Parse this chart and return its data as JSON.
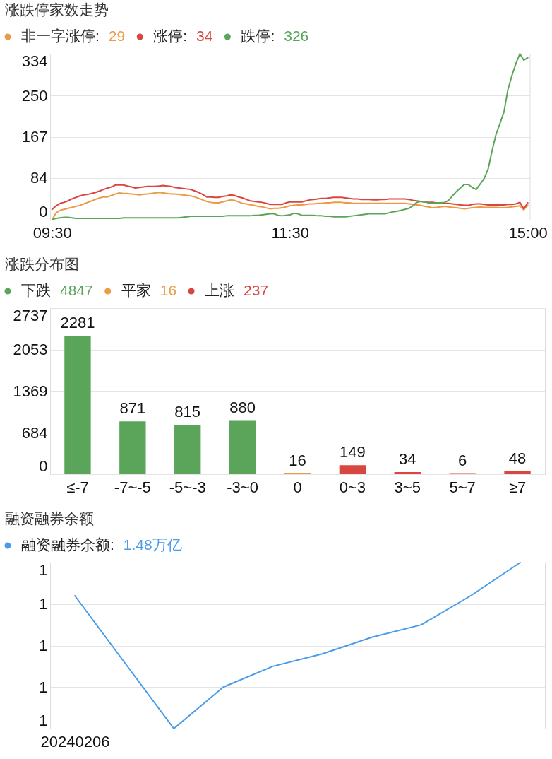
{
  "chart_data": [
    {
      "type": "line",
      "title": "涨跌停家数走势",
      "categories": [
        "09:30",
        null,
        null,
        null,
        null,
        null,
        null,
        null,
        null,
        null,
        null,
        null,
        null,
        null,
        null,
        null,
        null,
        null,
        null,
        null,
        null,
        null,
        null,
        null,
        null,
        null,
        null,
        null,
        null,
        null,
        null,
        null,
        null,
        null,
        null,
        null,
        null,
        null,
        null,
        null,
        null,
        null,
        null,
        null,
        null,
        null,
        null,
        null,
        null,
        null,
        null,
        null,
        null,
        null,
        null,
        null,
        null,
        null,
        null,
        null,
        "11:30",
        null,
        null,
        null,
        null,
        null,
        null,
        null,
        null,
        null,
        null,
        null,
        null,
        null,
        null,
        null,
        null,
        null,
        null,
        null,
        null,
        null,
        null,
        null,
        null,
        null,
        null,
        null,
        null,
        null,
        null,
        null,
        null,
        null,
        null,
        null,
        null,
        null,
        null,
        null,
        null,
        null,
        null,
        null,
        null,
        null,
        null,
        null,
        null,
        null,
        null,
        null,
        null,
        null,
        null,
        null,
        null,
        null,
        null,
        null,
        "15:00"
      ],
      "ylim": [
        0,
        334
      ],
      "yticks": [
        0,
        84,
        167,
        250,
        334
      ],
      "grid": "y",
      "legend": "top left",
      "annotations": [
        "29",
        "34",
        "326"
      ],
      "series": [
        {
          "name": "非一字涨停:",
          "color": "#eb9b43",
          "values": [
            0,
            14,
            19,
            21,
            23,
            25,
            27,
            29,
            32,
            35,
            38,
            41,
            44,
            46,
            46,
            49,
            52,
            54,
            53,
            53,
            52,
            51,
            50,
            51,
            52,
            53,
            54,
            55,
            54,
            53,
            52,
            52,
            51,
            50,
            49,
            48,
            46,
            43,
            40,
            37,
            35,
            34,
            34,
            36,
            38,
            40,
            39,
            36,
            33,
            32,
            30,
            29,
            27,
            26,
            24,
            22,
            23,
            23,
            24,
            26,
            28,
            29,
            30,
            30,
            31,
            32,
            32,
            33,
            33,
            34,
            34,
            35,
            35,
            35,
            34,
            34,
            33,
            33,
            33,
            33,
            33,
            33,
            33,
            33,
            33,
            33,
            33,
            33,
            33,
            33,
            32,
            31,
            30,
            29,
            27,
            26,
            24,
            25,
            26,
            27,
            26,
            25,
            24,
            23,
            22,
            23,
            24,
            25,
            26,
            25,
            25,
            25,
            25,
            24,
            24,
            25,
            26,
            27,
            28,
            20,
            29
          ]
        },
        {
          "name": "涨停:",
          "color": "#d9453f",
          "values": [
            21,
            28,
            33,
            35,
            38,
            42,
            45,
            48,
            50,
            51,
            53,
            55,
            58,
            61,
            64,
            66,
            70,
            70,
            70,
            68,
            66,
            64,
            65,
            66,
            67,
            67,
            67,
            68,
            69,
            68,
            67,
            65,
            64,
            63,
            62,
            61,
            58,
            55,
            51,
            46,
            46,
            45,
            45,
            47,
            48,
            50,
            49,
            46,
            44,
            41,
            38,
            37,
            36,
            35,
            33,
            31,
            31,
            31,
            31,
            34,
            36,
            36,
            36,
            36,
            38,
            40,
            41,
            42,
            43,
            43,
            44,
            45,
            45,
            45,
            44,
            43,
            42,
            42,
            41,
            41,
            41,
            40,
            40,
            41,
            41,
            42,
            42,
            42,
            42,
            42,
            41,
            39,
            38,
            37,
            36,
            35,
            35,
            34,
            34,
            33,
            33,
            32,
            31,
            30,
            29,
            29,
            31,
            32,
            32,
            31,
            30,
            30,
            30,
            30,
            30,
            31,
            31,
            32,
            35,
            22,
            34
          ]
        },
        {
          "name": "跌停:",
          "color": "#5ba55b",
          "values": [
            0,
            3,
            4,
            5,
            5,
            4,
            3,
            3,
            3,
            3,
            3,
            3,
            3,
            3,
            3,
            3,
            3,
            3,
            4,
            4,
            4,
            4,
            4,
            4,
            4,
            4,
            4,
            4,
            4,
            4,
            4,
            4,
            4,
            5,
            6,
            7,
            7,
            7,
            7,
            7,
            7,
            7,
            7,
            7,
            8,
            8,
            8,
            8,
            8,
            8,
            8,
            9,
            9,
            10,
            11,
            12,
            12,
            9,
            8,
            9,
            10,
            13,
            12,
            9,
            9,
            9,
            9,
            8,
            8,
            7,
            7,
            6,
            6,
            6,
            6,
            7,
            8,
            9,
            10,
            11,
            12,
            12,
            12,
            12,
            12,
            14,
            16,
            17,
            19,
            21,
            23,
            28,
            35,
            37,
            36,
            34,
            33,
            34,
            34,
            35,
            39,
            48,
            57,
            64,
            71,
            71,
            65,
            61,
            72,
            83,
            102,
            139,
            172,
            194,
            217,
            262,
            290,
            314,
            334,
            321,
            326
          ]
        }
      ]
    },
    {
      "type": "bar",
      "title": "涨跌分布图",
      "categories": [
        "≤-7",
        "-7~-5",
        "-5~-3",
        "-3~0",
        "0",
        "0~3",
        "3~5",
        "5~7",
        "≥7"
      ],
      "ylim": [
        0,
        2737
      ],
      "yticks": [
        0,
        684,
        1369,
        2053,
        2737
      ],
      "grid": "y",
      "legend": "top left",
      "data_labels": true,
      "annotations": [
        "4847",
        "16",
        "237"
      ],
      "series": [
        {
          "name": "下跌",
          "color": "#5ba55b",
          "values": [
            2281,
            871,
            815,
            880,
            null,
            null,
            null,
            null,
            null
          ]
        },
        {
          "name": "平家",
          "color": "#eb9b43",
          "values": [
            null,
            null,
            null,
            null,
            16,
            null,
            null,
            null,
            null
          ]
        },
        {
          "name": "上涨",
          "color": "#d9453f",
          "values": [
            null,
            null,
            null,
            null,
            null,
            149,
            34,
            6,
            48
          ]
        }
      ]
    },
    {
      "type": "line",
      "title": "融资融券余额",
      "categories": [
        "20240206",
        null,
        null,
        null,
        null,
        null,
        null,
        null,
        null,
        null
      ],
      "ylim": [
        1.44,
        1.48
      ],
      "yticks": [
        {
          "value": 1.44,
          "label": "1"
        },
        {
          "value": 1.45,
          "label": "1"
        },
        {
          "value": 1.46,
          "label": "1"
        },
        {
          "value": 1.47,
          "label": "1"
        },
        {
          "value": 1.48,
          "label": "1"
        }
      ],
      "grid": "y",
      "legend": "top left",
      "annotations": [
        "1.48万亿"
      ],
      "series": [
        {
          "name": "融资融券余额:",
          "color": "#4a9be8",
          "values": [
            1.472,
            1.456,
            1.44,
            1.45,
            1.455,
            1.458,
            1.462,
            1.465,
            1.472,
            1.48
          ]
        }
      ]
    }
  ]
}
